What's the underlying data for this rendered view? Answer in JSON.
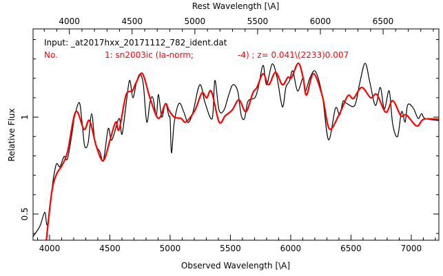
{
  "chart_data": {
    "type": "line",
    "xlabel": "Observed Wavelength [\\A]",
    "x2label": "Rest Wavelength [\\A]",
    "ylabel": "Relative Flux",
    "xlim": [
      3863,
      7229
    ],
    "ylim": [
      0.365,
      1.455
    ],
    "redshift": 0.041,
    "xticks": [
      4000,
      4500,
      5000,
      5500,
      6000,
      6500,
      7000
    ],
    "xticklabels": [
      "4000",
      "4500",
      "5000",
      "5500",
      "6000",
      "6500",
      "7000"
    ],
    "x2ticks": [
      4000,
      4500,
      5000,
      5500,
      6000,
      6500
    ],
    "x2ticklabels": [
      "4000",
      "4500",
      "5000",
      "5500",
      "6000",
      "6500"
    ],
    "yticks": [
      0.5,
      1
    ],
    "yticklabels": [
      "0.5",
      "1"
    ],
    "annotations": {
      "input": "Input: _at2017hxx_20171112_782_ident.dat",
      "no": "No.",
      "match": "1: sn2003ic (Ia-norm;",
      "fit": "-4) ; z= 0.041\\(2233)0.007"
    },
    "series": [
      {
        "name": "input spectrum",
        "color": "#000000",
        "x": [
          3863,
          3920,
          3960,
          3983,
          4029,
          4057,
          4086,
          4120,
          4149,
          4189,
          4206,
          4246,
          4269,
          4291,
          4320,
          4349,
          4377,
          4417,
          4446,
          4486,
          4509,
          4531,
          4577,
          4600,
          4629,
          4663,
          4691,
          4720,
          4749,
          4777,
          4806,
          4834,
          4857,
          4886,
          4903,
          4931,
          4960,
          4989,
          5000,
          5011,
          5034,
          5074,
          5114,
          5149,
          5189,
          5246,
          5291,
          5349,
          5371,
          5406,
          5446,
          5486,
          5520,
          5560,
          5589,
          5617,
          5646,
          5703,
          5731,
          5771,
          5800,
          5846,
          5886,
          5931,
          5960,
          5989,
          6017,
          6057,
          6103,
          6120,
          6160,
          6206,
          6263,
          6314,
          6371,
          6406,
          6434,
          6463,
          6531,
          6571,
          6617,
          6657,
          6703,
          6743,
          6777,
          6817,
          6846,
          6886,
          6920,
          6949,
          6971,
          7017,
          7057,
          7086,
          7114,
          7229
        ],
        "y": [
          0.384,
          0.438,
          0.509,
          0.448,
          0.673,
          0.758,
          0.744,
          0.797,
          0.786,
          0.929,
          1.0,
          1.075,
          0.975,
          0.851,
          0.868,
          1.018,
          0.868,
          0.822,
          0.776,
          0.94,
          0.883,
          0.904,
          0.993,
          0.911,
          1.036,
          1.189,
          1.1,
          1.178,
          1.221,
          1.171,
          0.975,
          1.082,
          1.1,
          1.011,
          1.117,
          1.0,
          1.071,
          1.007,
          0.989,
          0.815,
          0.972,
          1.071,
          1.025,
          0.972,
          1.025,
          1.167,
          1.071,
          0.993,
          1.189,
          1.036,
          1.036,
          1.114,
          1.167,
          1.135,
          1.011,
          0.993,
          1.082,
          1.1,
          1.153,
          1.267,
          1.167,
          1.274,
          1.206,
          1.053,
          1.153,
          1.185,
          1.238,
          1.135,
          1.203,
          1.132,
          1.203,
          1.235,
          1.107,
          0.883,
          1.046,
          1.011,
          1.082,
          1.071,
          1.06,
          1.171,
          1.278,
          1.178,
          1.06,
          1.153,
          1.043,
          1.135,
          0.964,
          0.9,
          1.028,
          0.975,
          1.064,
          1.046,
          0.993,
          1.018,
          0.993,
          0.982
        ]
      },
      {
        "name": "sn2003ic template",
        "color": "#ff0000",
        "x": [
          3966,
          4017,
          4057,
          4103,
          4149,
          4217,
          4286,
          4331,
          4389,
          4446,
          4503,
          4549,
          4577,
          4634,
          4686,
          4720,
          4771,
          4834,
          4903,
          4960,
          4989,
          5034,
          5091,
          5131,
          5206,
          5263,
          5303,
          5343,
          5406,
          5457,
          5514,
          5571,
          5629,
          5686,
          5720,
          5771,
          5817,
          5874,
          5931,
          5977,
          6006,
          6063,
          6103,
          6131,
          6189,
          6263,
          6320,
          6400,
          6474,
          6520,
          6589,
          6663,
          6714,
          6789,
          6846,
          6914,
          6960,
          7046,
          7103,
          7229
        ],
        "y": [
          0.324,
          0.609,
          0.705,
          0.751,
          0.822,
          1.028,
          0.936,
          0.982,
          0.847,
          0.776,
          0.886,
          0.975,
          0.936,
          1.114,
          1.135,
          1.181,
          1.224,
          1.096,
          0.993,
          1.068,
          1.036,
          1.0,
          0.993,
          0.975,
          1.036,
          1.125,
          1.1,
          1.132,
          0.975,
          1.007,
          1.036,
          1.089,
          1.028,
          1.125,
          1.153,
          1.224,
          1.167,
          1.231,
          1.167,
          1.206,
          1.203,
          1.278,
          1.203,
          1.114,
          1.224,
          1.107,
          0.94,
          1.011,
          1.11,
          1.096,
          1.153,
          1.1,
          1.117,
          1.025,
          1.085,
          1.007,
          1.011,
          0.954,
          0.989,
          0.989
        ]
      }
    ]
  }
}
